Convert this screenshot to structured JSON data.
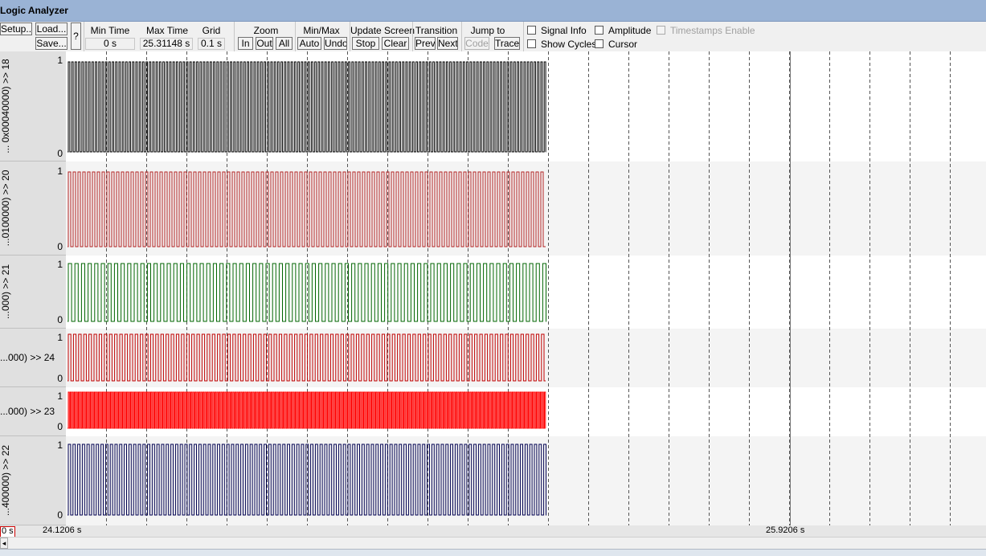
{
  "window": {
    "title": "Logic Analyzer"
  },
  "toolbar": {
    "setup_label": "Setup...",
    "load_label": "Load...",
    "save_label": "Save...",
    "help_label": "?",
    "min_time": {
      "label": "Min Time",
      "value": "0 s"
    },
    "max_time": {
      "label": "Max Time",
      "value": "25.31148 s"
    },
    "grid": {
      "label": "Grid",
      "value": "0.1 s"
    },
    "zoom": {
      "label": "Zoom",
      "in": "In",
      "out": "Out",
      "all": "All"
    },
    "minmax": {
      "label": "Min/Max",
      "auto": "Auto",
      "undo": "Undo"
    },
    "update_screen": {
      "label": "Update Screen",
      "stop": "Stop",
      "clear": "Clear"
    },
    "transition": {
      "label": "Transition",
      "prev": "Prev",
      "next": "Next"
    },
    "jump_to": {
      "label": "Jump to",
      "code": "Code",
      "trace": "Trace"
    },
    "options": {
      "signal_info": "Signal Info",
      "show_cycles": "Show Cycles",
      "amplitude": "Amplitude",
      "cursor": "Cursor",
      "timestamps_enable": "Timestamps Enable"
    }
  },
  "signals": [
    {
      "name": "... 0x00040000) >> 18",
      "orientation": "vertical",
      "color": "#000000",
      "high": "1",
      "low": "0"
    },
    {
      "name": "...0100000) >> 20",
      "orientation": "vertical",
      "color": "#b22222",
      "high": "1",
      "low": "0"
    },
    {
      "name": "...000) >> 21",
      "orientation": "vertical",
      "color": "#006400",
      "high": "1",
      "low": "0"
    },
    {
      "name": "...000) >> 24",
      "orientation": "horizontal",
      "color": "#c00000",
      "high": "1",
      "low": "0"
    },
    {
      "name": "...000) >> 23",
      "orientation": "horizontal",
      "color": "#ff0000",
      "high": "1",
      "low": "0"
    },
    {
      "name": "...400000) >> 22",
      "orientation": "vertical",
      "color": "#000050",
      "high": "1",
      "low": "0"
    }
  ],
  "status": {
    "origin": "0 s",
    "left_time": "24.1206 s",
    "cursor_time": "25.9206 s"
  },
  "colors": {
    "titlebar": "#9ab3d5",
    "toolbar": "#f0f0f0",
    "name_panel": "#e0e0e0"
  }
}
